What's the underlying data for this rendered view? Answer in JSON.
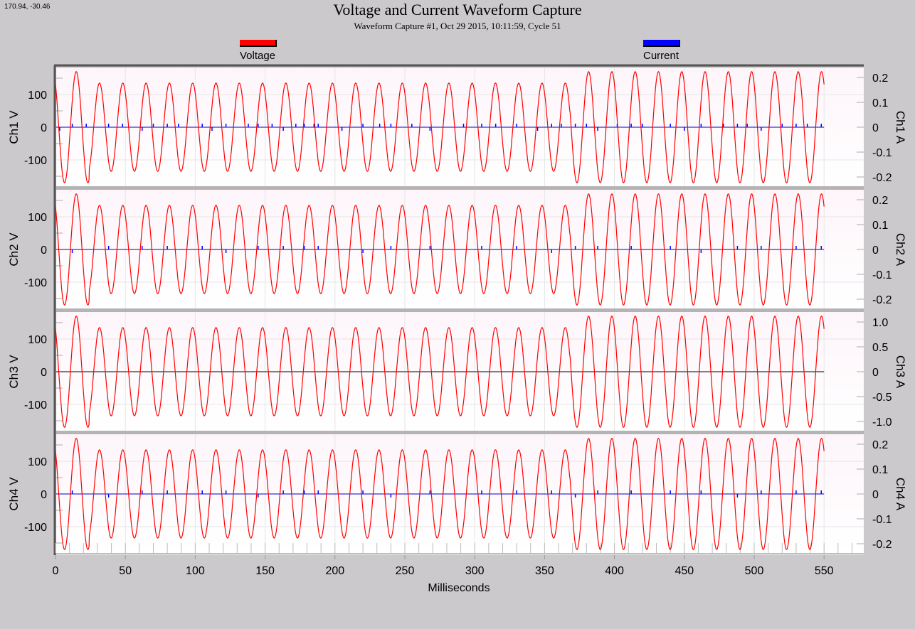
{
  "cursor_readout": "170.94, -30.46",
  "chart_data": {
    "type": "line",
    "title": "Voltage and Current Waveform Capture",
    "subtitle": "Waveform Capture #1, Oct 29 2015, 10:11:59,  Cycle 51",
    "xlabel": "Milliseconds",
    "xlim": [
      0,
      578
    ],
    "xticks": [
      "0",
      "50",
      "100",
      "150",
      "200",
      "250",
      "300",
      "350",
      "400",
      "450",
      "500",
      "550"
    ],
    "grid": true,
    "legend": {
      "placement": "top",
      "entries": [
        {
          "name": "Voltage",
          "color": "#ff0000"
        },
        {
          "name": "Current",
          "color": "#0000ff"
        }
      ]
    },
    "series": [
      {
        "name": "Voltage",
        "color": "#ff0000",
        "frequency_hz": 60,
        "first_trough_ms": 6.5,
        "x_end_ms": 550,
        "amplitude_segments": [
          {
            "from_ms": 0,
            "to_ms": 24,
            "amplitude_v": 170
          },
          {
            "from_ms": 24,
            "to_ms": 368,
            "amplitude_v": 135
          },
          {
            "from_ms": 368,
            "to_ms": 550,
            "amplitude_v": 170
          }
        ]
      },
      {
        "name": "Current",
        "color": "#0000ff",
        "baseline_a": 0,
        "spikes_ms": [
          3,
          12,
          22,
          38,
          48,
          62,
          70,
          80,
          88,
          105,
          112,
          122,
          138,
          145,
          155,
          163,
          172,
          178,
          185,
          188,
          205,
          220,
          232,
          240,
          255,
          268,
          292,
          305,
          315,
          330,
          345,
          355,
          362,
          372,
          380,
          388,
          402,
          412,
          420,
          440,
          450,
          462,
          478,
          488,
          495,
          505,
          520,
          530,
          538,
          548
        ]
      }
    ],
    "panels": [
      {
        "left_label": "Ch1 V",
        "right_label": "Ch1 A",
        "ylim_v": [
          -185,
          185
        ],
        "yticks_v": [
          "100",
          "0",
          "-100"
        ],
        "ylim_a": [
          -0.24,
          0.24
        ],
        "yticks_a": [
          "0.2",
          "0.1",
          "0",
          "-0.1",
          "-0.2"
        ],
        "a_values": [
          0.2,
          0.1,
          0,
          -0.1,
          -0.2
        ],
        "current_visible": true
      },
      {
        "left_label": "Ch2 V",
        "right_label": "Ch2 A",
        "ylim_v": [
          -185,
          185
        ],
        "yticks_v": [
          "100",
          "0",
          "-100"
        ],
        "ylim_a": [
          -0.24,
          0.24
        ],
        "yticks_a": [
          "0.2",
          "0.1",
          "0",
          "-0.1",
          "-0.2"
        ],
        "a_values": [
          0.2,
          0.1,
          0,
          -0.1,
          -0.2
        ],
        "current_visible": true
      },
      {
        "left_label": "Ch3 V",
        "right_label": "Ch3 A",
        "ylim_v": [
          -185,
          185
        ],
        "yticks_v": [
          "100",
          "0",
          "-100"
        ],
        "ylim_a": [
          -1.2,
          1.2
        ],
        "yticks_a": [
          "1.0",
          "0.5",
          "0",
          "-0.5",
          "-1.0"
        ],
        "a_values": [
          1,
          0.5,
          0,
          -0.5,
          -1
        ],
        "current_visible": false
      },
      {
        "left_label": "Ch4 V",
        "right_label": "Ch4 A",
        "ylim_v": [
          -185,
          185
        ],
        "yticks_v": [
          "100",
          "0",
          "-100"
        ],
        "ylim_a": [
          -0.24,
          0.24
        ],
        "yticks_a": [
          "0.2",
          "0.1",
          "0",
          "-0.1",
          "-0.2"
        ],
        "a_values": [
          0.2,
          0.1,
          0,
          -0.1,
          -0.2
        ],
        "current_visible": true
      }
    ]
  }
}
